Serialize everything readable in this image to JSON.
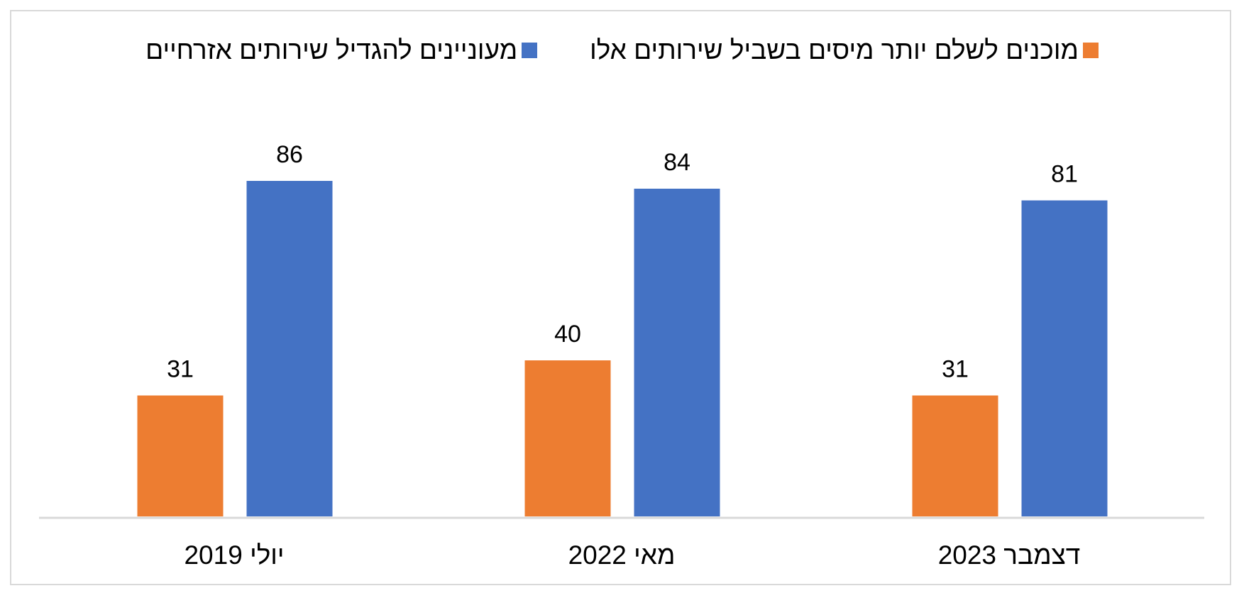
{
  "chart_data": {
    "type": "bar",
    "categories": [
      "יולי 2019",
      "מאי 2022",
      "דצמבר 2023"
    ],
    "series": [
      {
        "name": "מוכנים לשלם יותר מיסים בשביל שירותים אלו",
        "values": [
          31,
          40,
          31
        ],
        "color": "#ED7D31"
      },
      {
        "name": "מעוניינים להגדיל שירותים אזרחיים",
        "values": [
          86,
          84,
          81
        ],
        "color": "#4472C4"
      }
    ],
    "ylim": [
      0,
      100
    ],
    "grid": false,
    "legend_position": "top",
    "direction": "rtl"
  }
}
